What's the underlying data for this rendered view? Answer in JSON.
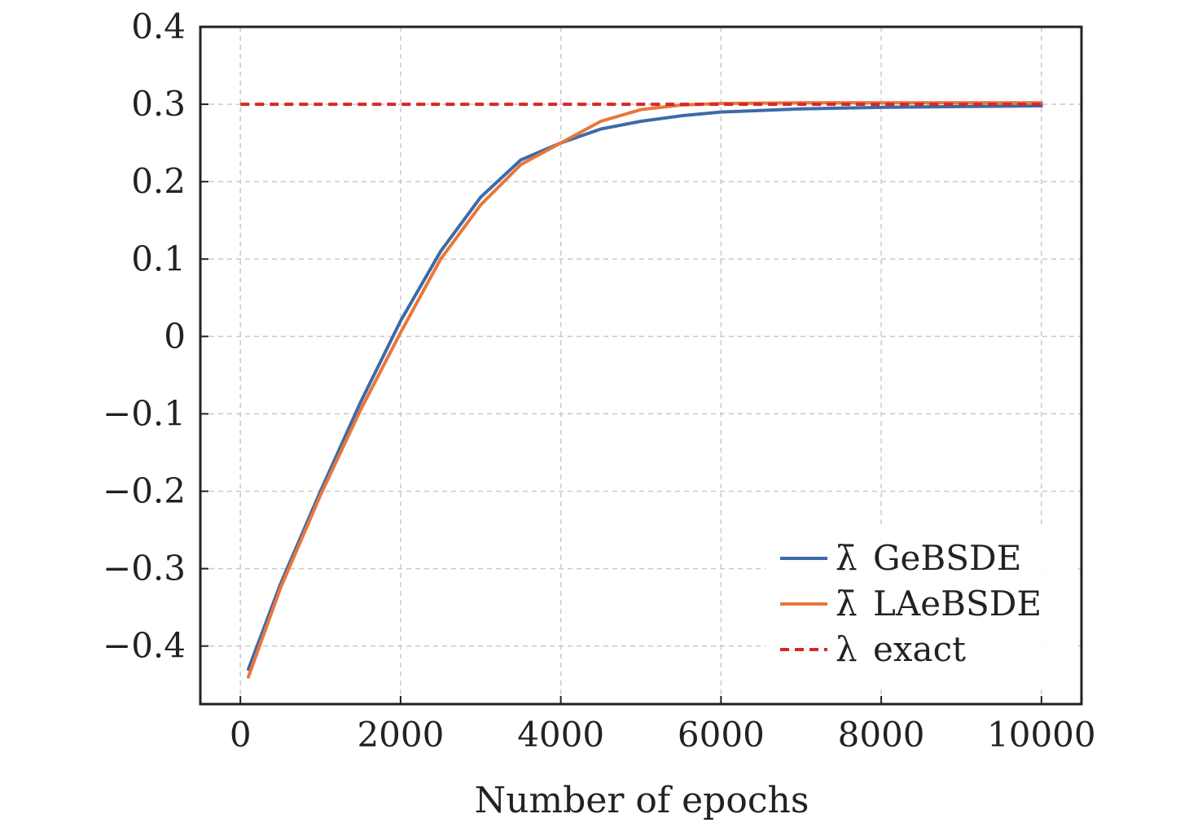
{
  "chart_data": {
    "type": "line",
    "title": "",
    "xlabel": "Number of epochs",
    "ylabel": "",
    "xlim": [
      -500,
      10500
    ],
    "ylim": [
      -0.475,
      0.4
    ],
    "xticks": [
      0,
      2000,
      4000,
      6000,
      8000,
      10000
    ],
    "xtick_labels": [
      "0",
      "2000",
      "4000",
      "6000",
      "8000",
      "10000"
    ],
    "yticks": [
      -0.4,
      -0.3,
      -0.2,
      -0.1,
      0,
      0.1,
      0.2,
      0.3,
      0.4
    ],
    "ytick_labels": [
      "−0.4",
      "−0.3",
      "−0.2",
      "−0.1",
      "0",
      "0.1",
      "0.2",
      "0.3",
      "0.4"
    ],
    "grid": true,
    "legend_position": "bottom-right",
    "series": [
      {
        "name": "GeBSDE",
        "legend_symbol": "λ̄",
        "color": "#3d6aa8",
        "style": "solid",
        "x": [
          100,
          500,
          1000,
          1500,
          2000,
          2500,
          3000,
          3500,
          4000,
          4500,
          5000,
          5500,
          6000,
          7000,
          8000,
          9000,
          10000
        ],
        "y": [
          -0.43,
          -0.32,
          -0.2,
          -0.085,
          0.02,
          0.11,
          0.18,
          0.228,
          0.25,
          0.268,
          0.278,
          0.285,
          0.29,
          0.294,
          0.296,
          0.297,
          0.298
        ]
      },
      {
        "name": "LAeBSDE",
        "legend_symbol": "λ̄",
        "color": "#e8773a",
        "style": "solid",
        "x": [
          100,
          500,
          1000,
          1500,
          2000,
          2500,
          3000,
          3500,
          4000,
          4500,
          5000,
          5500,
          6000,
          7000,
          8000,
          9000,
          10000
        ],
        "y": [
          -0.44,
          -0.325,
          -0.205,
          -0.095,
          0.005,
          0.1,
          0.17,
          0.222,
          0.25,
          0.278,
          0.293,
          0.299,
          0.301,
          0.302,
          0.302,
          0.302,
          0.302
        ]
      },
      {
        "name": "exact",
        "legend_symbol": "λ",
        "color": "#d62728",
        "style": "dashed",
        "x": [
          0,
          10000
        ],
        "y": [
          0.3,
          0.3
        ]
      }
    ]
  }
}
